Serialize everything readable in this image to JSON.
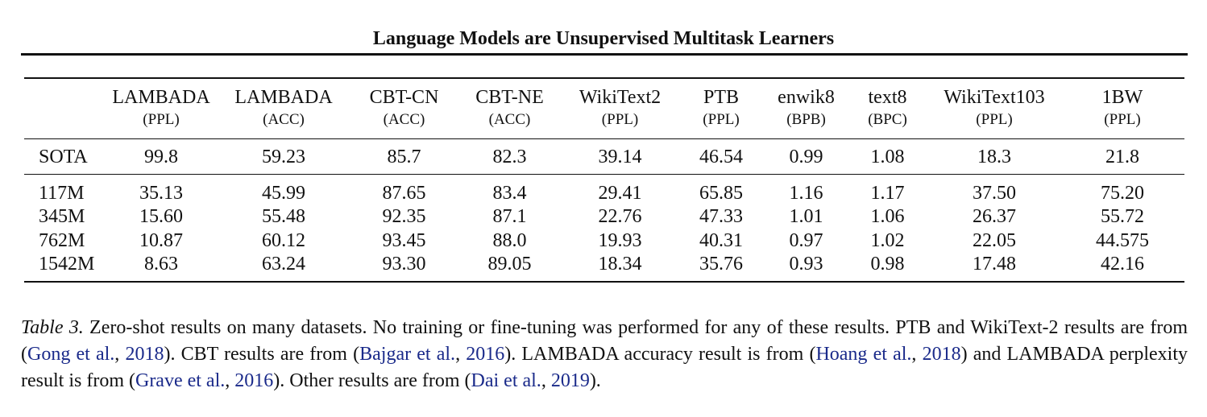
{
  "running_head": "Language Models are Unsupervised Multitask Learners",
  "table": {
    "columns": [
      {
        "name": "LAMBADA",
        "metric": "(PPL)"
      },
      {
        "name": "LAMBADA",
        "metric": "(ACC)"
      },
      {
        "name": "CBT-CN",
        "metric": "(ACC)"
      },
      {
        "name": "CBT-NE",
        "metric": "(ACC)"
      },
      {
        "name": "WikiText2",
        "metric": "(PPL)"
      },
      {
        "name": "PTB",
        "metric": "(PPL)"
      },
      {
        "name": "enwik8",
        "metric": "(BPB)"
      },
      {
        "name": "text8",
        "metric": "(BPC)"
      },
      {
        "name": "WikiText103",
        "metric": "(PPL)"
      },
      {
        "name": "1BW",
        "metric": "(PPL)"
      }
    ],
    "rows": [
      {
        "label": "SOTA",
        "cells": [
          {
            "value": "99.8",
            "bold": false
          },
          {
            "value": "59.23",
            "bold": false
          },
          {
            "value": "85.7",
            "bold": false
          },
          {
            "value": "82.3",
            "bold": false
          },
          {
            "value": "39.14",
            "bold": false
          },
          {
            "value": "46.54",
            "bold": false
          },
          {
            "value": "0.99",
            "bold": false
          },
          {
            "value": "1.08",
            "bold": false
          },
          {
            "value": "18.3",
            "bold": false
          },
          {
            "value": "21.8",
            "bold": true
          }
        ]
      },
      {
        "label": "117M",
        "cells": [
          {
            "value": "35.13",
            "bold": true
          },
          {
            "value": "45.99",
            "bold": false
          },
          {
            "value": "87.65",
            "bold": true
          },
          {
            "value": "83.4",
            "bold": true
          },
          {
            "value": "29.41",
            "bold": true
          },
          {
            "value": "65.85",
            "bold": false
          },
          {
            "value": "1.16",
            "bold": false
          },
          {
            "value": "1.17",
            "bold": false
          },
          {
            "value": "37.50",
            "bold": false
          },
          {
            "value": "75.20",
            "bold": false
          }
        ]
      },
      {
        "label": "345M",
        "cells": [
          {
            "value": "15.60",
            "bold": true
          },
          {
            "value": "55.48",
            "bold": false
          },
          {
            "value": "92.35",
            "bold": true
          },
          {
            "value": "87.1",
            "bold": true
          },
          {
            "value": "22.76",
            "bold": true
          },
          {
            "value": "47.33",
            "bold": false
          },
          {
            "value": "1.01",
            "bold": false
          },
          {
            "value": "1.06",
            "bold": true
          },
          {
            "value": "26.37",
            "bold": false
          },
          {
            "value": "55.72",
            "bold": false
          }
        ]
      },
      {
        "label": "762M",
        "cells": [
          {
            "value": "10.87",
            "bold": true
          },
          {
            "value": "60.12",
            "bold": true
          },
          {
            "value": "93.45",
            "bold": true
          },
          {
            "value": "88.0",
            "bold": true
          },
          {
            "value": "19.93",
            "bold": true
          },
          {
            "value": "40.31",
            "bold": true
          },
          {
            "value": "0.97",
            "bold": true
          },
          {
            "value": "1.02",
            "bold": true
          },
          {
            "value": "22.05",
            "bold": false
          },
          {
            "value": "44.575",
            "bold": false
          }
        ]
      },
      {
        "label": "1542M",
        "cells": [
          {
            "value": "8.63",
            "bold": true
          },
          {
            "value": "63.24",
            "bold": true
          },
          {
            "value": "93.30",
            "bold": true
          },
          {
            "value": "89.05",
            "bold": true
          },
          {
            "value": "18.34",
            "bold": true
          },
          {
            "value": "35.76",
            "bold": true
          },
          {
            "value": "0.93",
            "bold": true
          },
          {
            "value": "0.98",
            "bold": true
          },
          {
            "value": "17.48",
            "bold": true
          },
          {
            "value": "42.16",
            "bold": false
          }
        ]
      }
    ]
  },
  "caption": {
    "label": "Table 3.",
    "text_1": " Zero-shot results on many datasets. No training or fine-tuning was performed for any of these results. PTB and WikiText-2 results are from (",
    "cite_1_authors": "Gong et al.",
    "cite_1_year": "2018",
    "text_2": "). CBT results are from (",
    "cite_2_authors": "Bajgar et al.",
    "cite_2_year": "2016",
    "text_3": "). LAMBADA accuracy result is from (",
    "cite_3_authors": "Hoang et al.",
    "cite_3_year": "2018",
    "text_4": ") and LAMBADA perplexity result is from (",
    "cite_4_authors": "Grave et al.",
    "cite_4_year": "2016",
    "text_5": "). Other results are from (",
    "cite_5_authors": "Dai et al.",
    "cite_5_year": "2019",
    "text_6": ").",
    "link_color": "#1a2a8a"
  }
}
